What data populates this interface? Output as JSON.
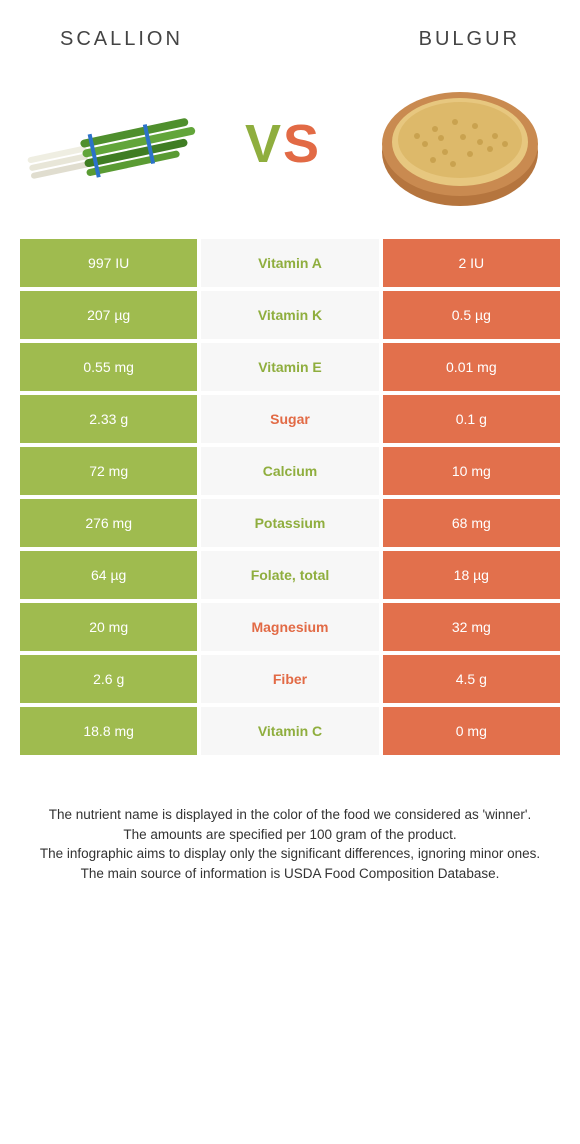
{
  "colors": {
    "left": "#9fbb4f",
    "right": "#e2704c",
    "left_text": "#8fae3e",
    "right_text": "#e26a45",
    "mid_bg": "#f7f7f7"
  },
  "header": {
    "left_title": "SCALLION",
    "right_title": "BULGUR",
    "vs_v": "V",
    "vs_s": "S"
  },
  "rows": [
    {
      "left": "997 IU",
      "label": "Vitamin A",
      "right": "2 IU",
      "winner": "left"
    },
    {
      "left": "207 µg",
      "label": "Vitamin K",
      "right": "0.5 µg",
      "winner": "left"
    },
    {
      "left": "0.55 mg",
      "label": "Vitamin E",
      "right": "0.01 mg",
      "winner": "left"
    },
    {
      "left": "2.33 g",
      "label": "Sugar",
      "right": "0.1 g",
      "winner": "right"
    },
    {
      "left": "72 mg",
      "label": "Calcium",
      "right": "10 mg",
      "winner": "left"
    },
    {
      "left": "276 mg",
      "label": "Potassium",
      "right": "68 mg",
      "winner": "left"
    },
    {
      "left": "64 µg",
      "label": "Folate, total",
      "right": "18 µg",
      "winner": "left"
    },
    {
      "left": "20 mg",
      "label": "Magnesium",
      "right": "32 mg",
      "winner": "right"
    },
    {
      "left": "2.6 g",
      "label": "Fiber",
      "right": "4.5 g",
      "winner": "right"
    },
    {
      "left": "18.8 mg",
      "label": "Vitamin C",
      "right": "0 mg",
      "winner": "left"
    }
  ],
  "footer": {
    "line1": "The nutrient name is displayed in the color of the food we considered as 'winner'.",
    "line2": "The amounts are specified per 100 gram of the product.",
    "line3": "The infographic aims to display only the significant differences, ignoring minor ones.",
    "line4": "The main source of information is USDA Food Composition Database."
  }
}
